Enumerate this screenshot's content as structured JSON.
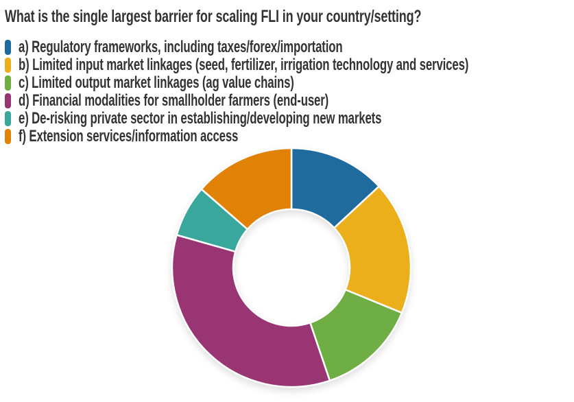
{
  "title": "What is the single largest barrier for scaling FLI in your country/setting?",
  "colors": {
    "text": "#333333",
    "background": "#ffffff",
    "slice_separator": "#ffffff"
  },
  "legend": {
    "items": [
      {
        "key": "a",
        "label": "a) Regulatory frameworks, including taxes/forex/importation",
        "color": "#1F6B9D"
      },
      {
        "key": "b",
        "label": "b) Limited input market linkages (seed, fertilizer, irrigation technology and services)",
        "color": "#EAAF1A"
      },
      {
        "key": "c",
        "label": "c) Limited output market linkages (ag value chains)",
        "color": "#6FAE45"
      },
      {
        "key": "d",
        "label": "d) Financial modalities for smallholder farmers (end-user)",
        "color": "#9A3573"
      },
      {
        "key": "e",
        "label": "e) De-risking private sector in establishing/developing new markets",
        "color": "#3AA79D"
      },
      {
        "key": "f",
        "label": "f) Extension services/information access",
        "color": "#E18207"
      }
    ]
  },
  "chart_data": {
    "type": "pie",
    "subtype": "donut",
    "title": "What is the single largest barrier for scaling FLI in your country/setting?",
    "categories": [
      "a) Regulatory frameworks, including taxes/forex/importation",
      "b) Limited input market linkages (seed, fertilizer, irrigation technology and services)",
      "c) Limited output market linkages (ag value chains)",
      "d) Financial modalities for smallholder farmers (end-user)",
      "e) De-risking private sector in establishing/developing new markets",
      "f) Extension services/information access"
    ],
    "values_pct_estimated": [
      13.1,
      18.1,
      13.6,
      34.6,
      7.0,
      13.6
    ],
    "slice_angles_deg": [
      {
        "start": 0,
        "end": 47.2
      },
      {
        "start": 47.2,
        "end": 112.3
      },
      {
        "start": 112.3,
        "end": 161.3
      },
      {
        "start": 161.3,
        "end": 285.8
      },
      {
        "start": 285.8,
        "end": 311.0
      },
      {
        "start": 311.0,
        "end": 360.0
      }
    ],
    "colors": [
      "#1F6B9D",
      "#EAAF1A",
      "#6FAE45",
      "#9A3573",
      "#3AA79D",
      "#E18207"
    ],
    "start_angle": "12-o-clock",
    "direction": "clockwise",
    "inner_radius_ratio": 0.49,
    "data_labels": "none",
    "legend_position": "top-left"
  }
}
